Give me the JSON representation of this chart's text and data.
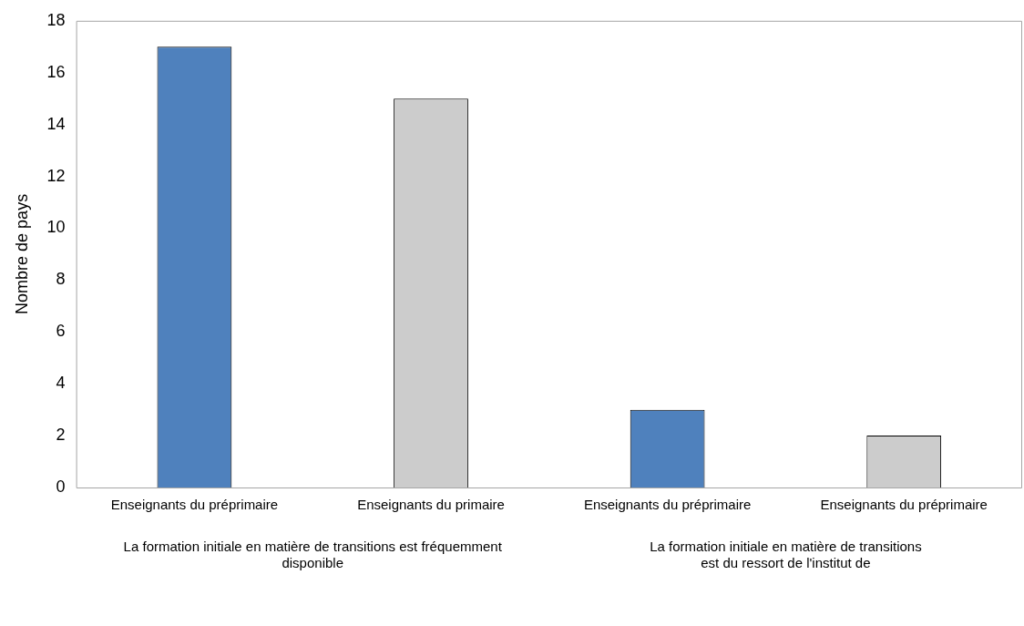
{
  "chart_data": {
    "type": "bar",
    "ylabel": "Nombre de pays",
    "categories": [
      "Enseignants du préprimaire",
      "Enseignants du primaire",
      "Enseignants du préprimaire",
      "Enseignants du préprimaire"
    ],
    "values": [
      17,
      15,
      3,
      2
    ],
    "colors": [
      "#4f81bd",
      "#cccccc",
      "#4f81bd",
      "#cccccc"
    ],
    "ylim": [
      0,
      18
    ],
    "yticks": [
      0,
      2,
      4,
      6,
      8,
      10,
      12,
      14,
      16,
      18
    ],
    "grid": false,
    "legend": false,
    "annotations": [
      "La formation initiale en matière de transitions est fréquemment disponible",
      "La formation initiale en matière de transitions est du ressort de l'institut de"
    ]
  }
}
